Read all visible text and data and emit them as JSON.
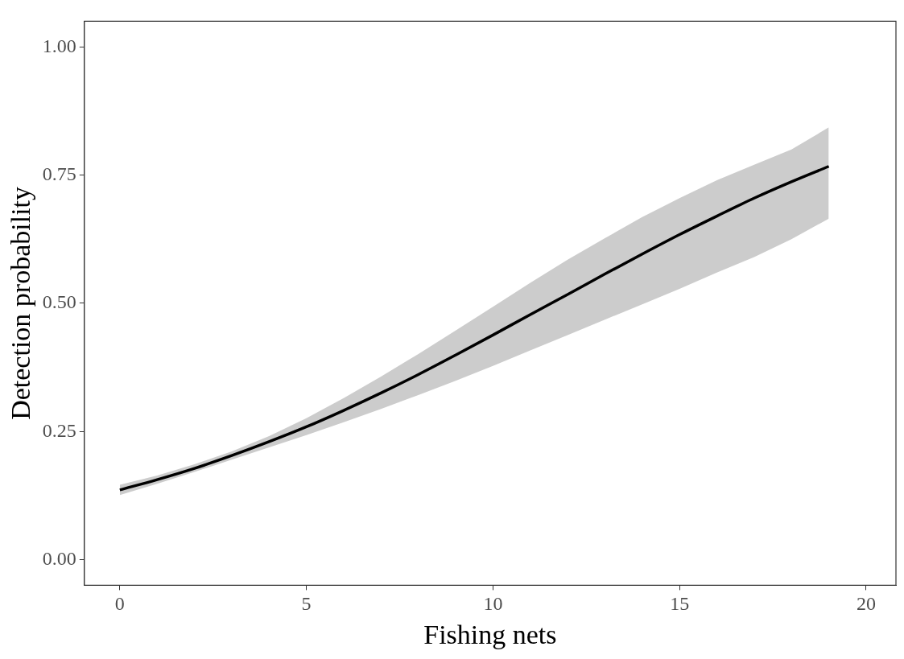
{
  "chart_data": {
    "type": "line",
    "xlabel": "Fishing nets",
    "ylabel": "Detection probability",
    "x": [
      0,
      1,
      2,
      3,
      4,
      5,
      6,
      7,
      8,
      9,
      10,
      11,
      12,
      13,
      14,
      15,
      16,
      17,
      18,
      19
    ],
    "series": [
      {
        "color": "#000000",
        "values": [
          0.136,
          0.156,
          0.178,
          0.203,
          0.23,
          0.259,
          0.291,
          0.325,
          0.361,
          0.399,
          0.438,
          0.478,
          0.517,
          0.557,
          0.596,
          0.634,
          0.67,
          0.705,
          0.737,
          0.767
        ],
        "lower": [
          0.126,
          0.148,
          0.171,
          0.195,
          0.219,
          0.243,
          0.268,
          0.294,
          0.321,
          0.349,
          0.378,
          0.408,
          0.438,
          0.468,
          0.498,
          0.528,
          0.56,
          0.59,
          0.625,
          0.665
        ],
        "upper": [
          0.146,
          0.164,
          0.186,
          0.211,
          0.241,
          0.276,
          0.315,
          0.357,
          0.401,
          0.447,
          0.493,
          0.54,
          0.585,
          0.627,
          0.668,
          0.705,
          0.74,
          0.77,
          0.8,
          0.843
        ]
      }
    ],
    "xlim": [
      -0.95,
      20.8
    ],
    "xticks": [
      0,
      5,
      10,
      15,
      20
    ],
    "ylim": [
      -0.05,
      1.05
    ],
    "yticks": [
      {
        "value": 0,
        "label": "0.00"
      },
      {
        "value": 0.25,
        "label": "0.25"
      },
      {
        "value": 0.5,
        "label": "0.50"
      },
      {
        "value": 0.75,
        "label": "0.75"
      },
      {
        "value": 1,
        "label": "1.00"
      }
    ],
    "grid": false,
    "legend": false,
    "marker": "none",
    "line_style": "solid"
  }
}
